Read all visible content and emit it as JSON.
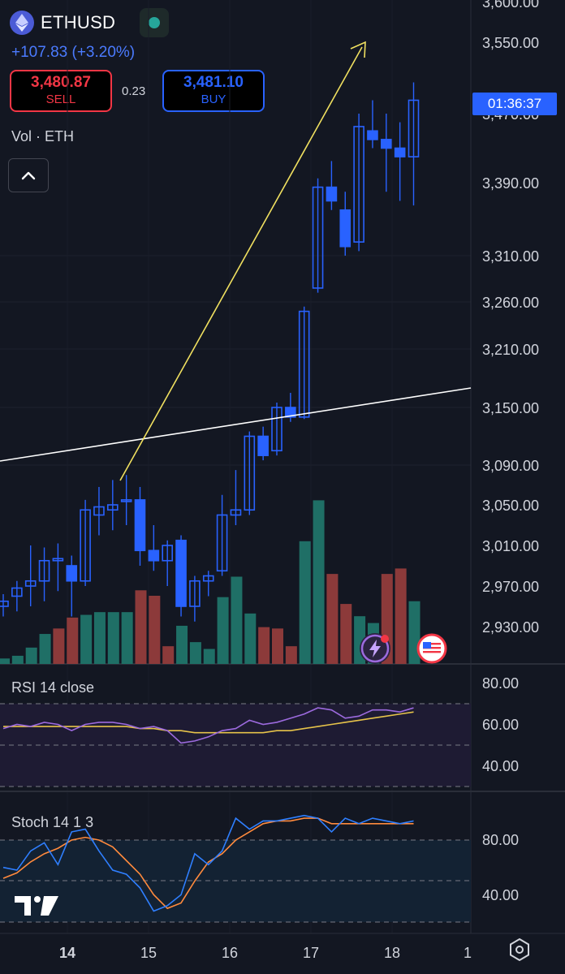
{
  "header": {
    "symbol": "ETHUSD",
    "coin_icon": "ethereum-icon",
    "change_text": "+107.83 (+3.20%)",
    "sell_price": "3,480.87",
    "sell_label": "SELL",
    "spread": "0.23",
    "buy_price": "3,481.10",
    "buy_label": "BUY",
    "volume_label": "Vol · ETH",
    "collapse_icon": "chevron-up-icon"
  },
  "price_badge": "01:36:37",
  "price_axis": {
    "ticks": [
      "3,600.00",
      "3,550.00",
      "3,470.00",
      "3,390.00",
      "3,310.00",
      "3,260.00",
      "3,210.00",
      "3,150.00",
      "3,090.00",
      "3,050.00",
      "3,010.00",
      "2,970.00",
      "2,930.00"
    ]
  },
  "rsi": {
    "label": "RSI 14 close",
    "ticks": [
      "80.00",
      "60.00",
      "40.00"
    ]
  },
  "stoch": {
    "label": "Stoch 14 1 3",
    "ticks": [
      "80.00",
      "40.00"
    ]
  },
  "time_axis": {
    "ticks": [
      "14",
      "15",
      "16",
      "17",
      "18",
      "1"
    ]
  },
  "icons": {
    "flash": "lightning-icon",
    "flag": "us-flag-icon",
    "logo": "tradingview-logo",
    "settings": "settings-icon"
  },
  "colors": {
    "background": "#131722",
    "candle_up": "#2962ff",
    "volume_up": "#1f6f66",
    "volume_down": "#8c3a3a",
    "rsi_line": "#9c6ade",
    "rsi_ma": "#e6c34a",
    "stoch_k": "#2f7fff",
    "stoch_d": "#ff8a3d",
    "trend_arrow": "#f0e060",
    "trend_line": "#ffffff"
  },
  "chart_data": {
    "type": "candlestick",
    "x": [
      "14",
      "15",
      "16",
      "17",
      "18"
    ],
    "candles": [
      {
        "o": 2950,
        "h": 2962,
        "l": 2940,
        "c": 2955
      },
      {
        "o": 2960,
        "h": 2975,
        "l": 2945,
        "c": 2968
      },
      {
        "o": 2970,
        "h": 3010,
        "l": 2950,
        "c": 2975
      },
      {
        "o": 2975,
        "h": 3008,
        "l": 2955,
        "c": 2995
      },
      {
        "o": 2995,
        "h": 3012,
        "l": 2965,
        "c": 2997
      },
      {
        "o": 2990,
        "h": 3000,
        "l": 2940,
        "c": 2975
      },
      {
        "o": 2975,
        "h": 3055,
        "l": 2970,
        "c": 3045
      },
      {
        "o": 3040,
        "h": 3068,
        "l": 3020,
        "c": 3048
      },
      {
        "o": 3045,
        "h": 3075,
        "l": 3025,
        "c": 3050
      },
      {
        "o": 3055,
        "h": 3080,
        "l": 3030,
        "c": 3055
      },
      {
        "o": 3055,
        "h": 3068,
        "l": 2990,
        "c": 3005
      },
      {
        "o": 3005,
        "h": 3030,
        "l": 2985,
        "c": 2995
      },
      {
        "o": 2995,
        "h": 3015,
        "l": 2970,
        "c": 3010
      },
      {
        "o": 3015,
        "h": 3020,
        "l": 2940,
        "c": 2950
      },
      {
        "o": 2950,
        "h": 2980,
        "l": 2935,
        "c": 2975
      },
      {
        "o": 2975,
        "h": 2985,
        "l": 2960,
        "c": 2980
      },
      {
        "o": 2985,
        "h": 3060,
        "l": 2980,
        "c": 3040
      },
      {
        "o": 3040,
        "h": 3085,
        "l": 3030,
        "c": 3045
      },
      {
        "o": 3045,
        "h": 3125,
        "l": 3040,
        "c": 3120
      },
      {
        "o": 3120,
        "h": 3130,
        "l": 3095,
        "c": 3100
      },
      {
        "o": 3105,
        "h": 3155,
        "l": 3100,
        "c": 3150
      },
      {
        "o": 3150,
        "h": 3165,
        "l": 3135,
        "c": 3140
      },
      {
        "o": 3140,
        "h": 3255,
        "l": 3138,
        "c": 3250
      },
      {
        "o": 3275,
        "h": 3395,
        "l": 3270,
        "c": 3385
      },
      {
        "o": 3385,
        "h": 3415,
        "l": 3360,
        "c": 3370
      },
      {
        "o": 3360,
        "h": 3380,
        "l": 3310,
        "c": 3320
      },
      {
        "o": 3325,
        "h": 3470,
        "l": 3315,
        "c": 3455
      },
      {
        "o": 3450,
        "h": 3485,
        "l": 3430,
        "c": 3440
      },
      {
        "o": 3440,
        "h": 3470,
        "l": 3380,
        "c": 3430
      },
      {
        "o": 3430,
        "h": 3460,
        "l": 3370,
        "c": 3420
      },
      {
        "o": 3420,
        "h": 3505,
        "l": 3365,
        "c": 3485
      }
    ],
    "volume": [
      {
        "v": 4,
        "dir": "up"
      },
      {
        "v": 6,
        "dir": "up"
      },
      {
        "v": 12,
        "dir": "up"
      },
      {
        "v": 22,
        "dir": "up"
      },
      {
        "v": 26,
        "dir": "down"
      },
      {
        "v": 34,
        "dir": "down"
      },
      {
        "v": 36,
        "dir": "up"
      },
      {
        "v": 38,
        "dir": "up"
      },
      {
        "v": 38,
        "dir": "up"
      },
      {
        "v": 38,
        "dir": "up"
      },
      {
        "v": 54,
        "dir": "down"
      },
      {
        "v": 50,
        "dir": "down"
      },
      {
        "v": 13,
        "dir": "down"
      },
      {
        "v": 28,
        "dir": "up"
      },
      {
        "v": 16,
        "dir": "up"
      },
      {
        "v": 11,
        "dir": "up"
      },
      {
        "v": 49,
        "dir": "up"
      },
      {
        "v": 64,
        "dir": "up"
      },
      {
        "v": 37,
        "dir": "up"
      },
      {
        "v": 27,
        "dir": "down"
      },
      {
        "v": 26,
        "dir": "down"
      },
      {
        "v": 13,
        "dir": "down"
      },
      {
        "v": 90,
        "dir": "up"
      },
      {
        "v": 120,
        "dir": "up"
      },
      {
        "v": 66,
        "dir": "down"
      },
      {
        "v": 44,
        "dir": "down"
      },
      {
        "v": 35,
        "dir": "up"
      },
      {
        "v": 30,
        "dir": "up"
      },
      {
        "v": 66,
        "dir": "down"
      },
      {
        "v": 70,
        "dir": "down"
      },
      {
        "v": 46,
        "dir": "up"
      }
    ],
    "rsi": [
      68,
      70,
      69,
      71,
      70,
      67,
      70,
      71,
      71,
      70,
      68,
      69,
      67,
      61,
      62,
      64,
      67,
      68,
      72,
      70,
      71,
      73,
      75,
      78,
      77,
      73,
      74,
      77,
      77,
      76,
      78
    ],
    "rsi_ma": [
      69,
      69,
      69,
      69,
      69,
      69,
      69,
      69,
      69,
      69,
      68,
      68,
      67,
      67,
      66,
      66,
      66,
      66,
      66,
      66,
      67,
      67,
      68,
      69,
      70,
      71,
      72,
      73,
      74,
      75,
      76
    ],
    "stoch_k": [
      60,
      58,
      72,
      78,
      62,
      86,
      88,
      72,
      58,
      55,
      45,
      28,
      32,
      40,
      70,
      62,
      72,
      96,
      88,
      94,
      94,
      96,
      98,
      96,
      86,
      96,
      92,
      96,
      94,
      92,
      94
    ],
    "stoch_d": [
      52,
      56,
      64,
      70,
      74,
      80,
      82,
      80,
      75,
      65,
      55,
      40,
      30,
      34,
      50,
      64,
      70,
      80,
      86,
      92,
      94,
      94,
      96,
      96,
      92,
      92,
      92,
      92,
      92,
      92,
      92
    ],
    "y_range": [
      2900,
      3600
    ],
    "rsi_range": [
      30,
      85
    ],
    "stoch_range": [
      15,
      110
    ]
  }
}
